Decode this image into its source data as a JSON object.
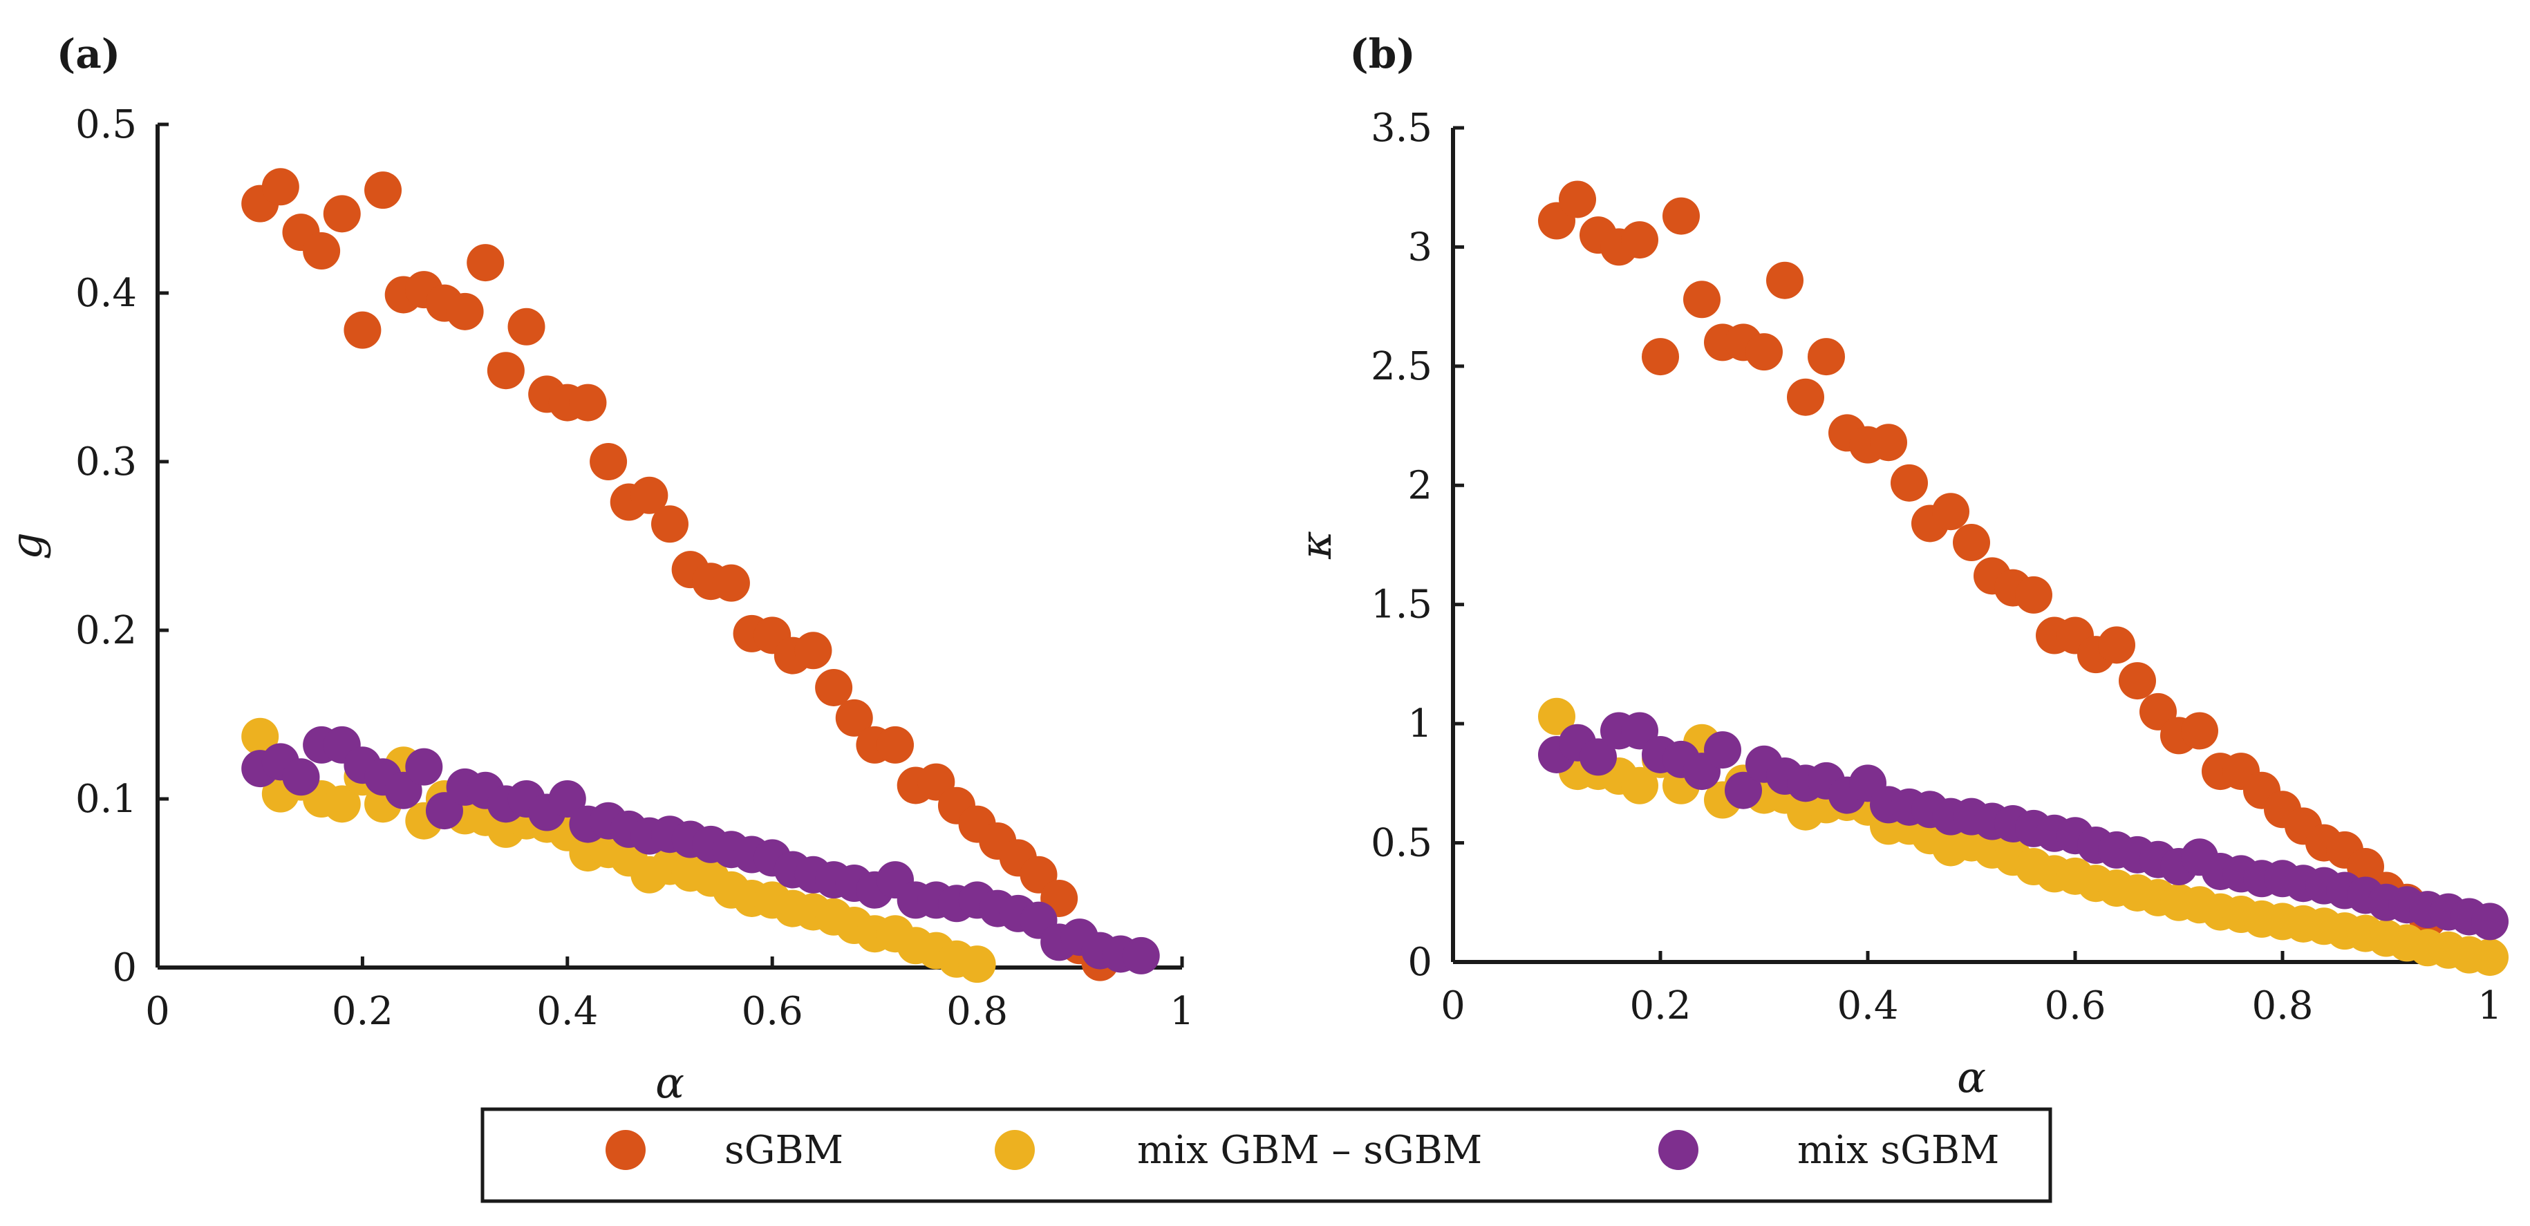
{
  "chart_data": [
    {
      "type": "scatter",
      "panel_label": "(a)",
      "xlabel": "α",
      "ylabel": "g",
      "xlim": [
        0,
        1
      ],
      "ylim": [
        0,
        0.5
      ],
      "xticks": [
        "0",
        "0.2",
        "0.4",
        "0.6",
        "0.8",
        "1"
      ],
      "yticks": [
        "0",
        "0.1",
        "0.2",
        "0.3",
        "0.4",
        "0.5"
      ],
      "grid": false,
      "series": [
        {
          "name": "sGBM",
          "color": "#d95319",
          "points": [
            [
              0.1,
              0.453
            ],
            [
              0.12,
              0.463
            ],
            [
              0.14,
              0.436
            ],
            [
              0.16,
              0.425
            ],
            [
              0.18,
              0.447
            ],
            [
              0.2,
              0.378
            ],
            [
              0.22,
              0.461
            ],
            [
              0.24,
              0.399
            ],
            [
              0.26,
              0.402
            ],
            [
              0.28,
              0.394
            ],
            [
              0.3,
              0.389
            ],
            [
              0.32,
              0.418
            ],
            [
              0.34,
              0.354
            ],
            [
              0.36,
              0.38
            ],
            [
              0.38,
              0.34
            ],
            [
              0.4,
              0.335
            ],
            [
              0.42,
              0.335
            ],
            [
              0.44,
              0.3
            ],
            [
              0.46,
              0.276
            ],
            [
              0.48,
              0.28
            ],
            [
              0.5,
              0.263
            ],
            [
              0.52,
              0.236
            ],
            [
              0.54,
              0.229
            ],
            [
              0.56,
              0.228
            ],
            [
              0.58,
              0.198
            ],
            [
              0.6,
              0.197
            ],
            [
              0.62,
              0.185
            ],
            [
              0.64,
              0.188
            ],
            [
              0.66,
              0.166
            ],
            [
              0.68,
              0.148
            ],
            [
              0.7,
              0.132
            ],
            [
              0.72,
              0.132
            ],
            [
              0.74,
              0.108
            ],
            [
              0.76,
              0.11
            ],
            [
              0.78,
              0.096
            ],
            [
              0.8,
              0.085
            ],
            [
              0.82,
              0.075
            ],
            [
              0.84,
              0.065
            ],
            [
              0.86,
              0.055
            ],
            [
              0.88,
              0.041
            ],
            [
              0.9,
              0.013
            ],
            [
              0.92,
              0.003
            ]
          ]
        },
        {
          "name": "mix GBM – sGBM",
          "color": "#edb120",
          "points": [
            [
              0.1,
              0.137
            ],
            [
              0.12,
              0.103
            ],
            [
              0.14,
              0.11
            ],
            [
              0.16,
              0.1
            ],
            [
              0.18,
              0.097
            ],
            [
              0.2,
              0.113
            ],
            [
              0.22,
              0.097
            ],
            [
              0.24,
              0.12
            ],
            [
              0.26,
              0.087
            ],
            [
              0.28,
              0.1
            ],
            [
              0.3,
              0.09
            ],
            [
              0.32,
              0.089
            ],
            [
              0.34,
              0.082
            ],
            [
              0.36,
              0.087
            ],
            [
              0.38,
              0.085
            ],
            [
              0.4,
              0.08
            ],
            [
              0.42,
              0.068
            ],
            [
              0.44,
              0.07
            ],
            [
              0.46,
              0.065
            ],
            [
              0.48,
              0.055
            ],
            [
              0.5,
              0.06
            ],
            [
              0.52,
              0.056
            ],
            [
              0.54,
              0.053
            ],
            [
              0.56,
              0.046
            ],
            [
              0.58,
              0.041
            ],
            [
              0.6,
              0.04
            ],
            [
              0.62,
              0.035
            ],
            [
              0.64,
              0.033
            ],
            [
              0.66,
              0.03
            ],
            [
              0.68,
              0.025
            ],
            [
              0.7,
              0.02
            ],
            [
              0.72,
              0.02
            ],
            [
              0.74,
              0.013
            ],
            [
              0.76,
              0.01
            ],
            [
              0.78,
              0.005
            ],
            [
              0.8,
              0.002
            ]
          ]
        },
        {
          "name": "mix sGBM",
          "color": "#7e2f8e",
          "points": [
            [
              0.1,
              0.118
            ],
            [
              0.12,
              0.122
            ],
            [
              0.14,
              0.113
            ],
            [
              0.16,
              0.132
            ],
            [
              0.18,
              0.132
            ],
            [
              0.2,
              0.12
            ],
            [
              0.22,
              0.113
            ],
            [
              0.24,
              0.105
            ],
            [
              0.26,
              0.119
            ],
            [
              0.28,
              0.093
            ],
            [
              0.3,
              0.107
            ],
            [
              0.32,
              0.105
            ],
            [
              0.34,
              0.097
            ],
            [
              0.36,
              0.1
            ],
            [
              0.38,
              0.092
            ],
            [
              0.4,
              0.1
            ],
            [
              0.42,
              0.085
            ],
            [
              0.44,
              0.087
            ],
            [
              0.46,
              0.082
            ],
            [
              0.48,
              0.078
            ],
            [
              0.5,
              0.079
            ],
            [
              0.52,
              0.076
            ],
            [
              0.54,
              0.073
            ],
            [
              0.56,
              0.07
            ],
            [
              0.58,
              0.067
            ],
            [
              0.6,
              0.065
            ],
            [
              0.62,
              0.058
            ],
            [
              0.64,
              0.055
            ],
            [
              0.66,
              0.052
            ],
            [
              0.68,
              0.05
            ],
            [
              0.7,
              0.046
            ],
            [
              0.72,
              0.052
            ],
            [
              0.74,
              0.04
            ],
            [
              0.76,
              0.04
            ],
            [
              0.78,
              0.038
            ],
            [
              0.8,
              0.04
            ],
            [
              0.82,
              0.035
            ],
            [
              0.84,
              0.032
            ],
            [
              0.86,
              0.028
            ],
            [
              0.88,
              0.015
            ],
            [
              0.9,
              0.018
            ],
            [
              0.92,
              0.01
            ],
            [
              0.94,
              0.008
            ],
            [
              0.96,
              0.007
            ]
          ]
        }
      ]
    },
    {
      "type": "scatter",
      "panel_label": "(b)",
      "xlabel": "α",
      "ylabel": "κ",
      "xlim": [
        0,
        1
      ],
      "ylim": [
        0,
        3.5
      ],
      "xticks": [
        "0",
        "0.2",
        "0.4",
        "0.6",
        "0.8",
        "1"
      ],
      "yticks": [
        "0",
        "0.5",
        "1",
        "1.5",
        "2",
        "2.5",
        "3",
        "3.5"
      ],
      "grid": false,
      "series": [
        {
          "name": "sGBM",
          "color": "#d95319",
          "points": [
            [
              0.1,
              3.11
            ],
            [
              0.12,
              3.2
            ],
            [
              0.14,
              3.05
            ],
            [
              0.16,
              3.0
            ],
            [
              0.18,
              3.03
            ],
            [
              0.2,
              2.54
            ],
            [
              0.22,
              3.13
            ],
            [
              0.24,
              2.78
            ],
            [
              0.26,
              2.6
            ],
            [
              0.28,
              2.6
            ],
            [
              0.3,
              2.56
            ],
            [
              0.32,
              2.86
            ],
            [
              0.34,
              2.37
            ],
            [
              0.36,
              2.54
            ],
            [
              0.38,
              2.22
            ],
            [
              0.4,
              2.17
            ],
            [
              0.42,
              2.18
            ],
            [
              0.44,
              2.01
            ],
            [
              0.46,
              1.84
            ],
            [
              0.48,
              1.89
            ],
            [
              0.5,
              1.76
            ],
            [
              0.52,
              1.62
            ],
            [
              0.54,
              1.57
            ],
            [
              0.56,
              1.54
            ],
            [
              0.58,
              1.37
            ],
            [
              0.6,
              1.37
            ],
            [
              0.62,
              1.29
            ],
            [
              0.64,
              1.33
            ],
            [
              0.66,
              1.18
            ],
            [
              0.68,
              1.05
            ],
            [
              0.7,
              0.95
            ],
            [
              0.72,
              0.97
            ],
            [
              0.74,
              0.8
            ],
            [
              0.76,
              0.8
            ],
            [
              0.78,
              0.72
            ],
            [
              0.8,
              0.64
            ],
            [
              0.82,
              0.57
            ],
            [
              0.84,
              0.5
            ],
            [
              0.86,
              0.47
            ],
            [
              0.88,
              0.4
            ],
            [
              0.9,
              0.3
            ],
            [
              0.92,
              0.25
            ],
            [
              0.94,
              0.18
            ]
          ]
        },
        {
          "name": "mix GBM – sGBM",
          "color": "#edb120",
          "points": [
            [
              0.1,
              1.03
            ],
            [
              0.12,
              0.8
            ],
            [
              0.14,
              0.8
            ],
            [
              0.16,
              0.78
            ],
            [
              0.18,
              0.74
            ],
            [
              0.2,
              0.85
            ],
            [
              0.22,
              0.74
            ],
            [
              0.24,
              0.92
            ],
            [
              0.26,
              0.68
            ],
            [
              0.28,
              0.75
            ],
            [
              0.3,
              0.7
            ],
            [
              0.32,
              0.7
            ],
            [
              0.34,
              0.63
            ],
            [
              0.36,
              0.66
            ],
            [
              0.38,
              0.67
            ],
            [
              0.4,
              0.65
            ],
            [
              0.42,
              0.57
            ],
            [
              0.44,
              0.57
            ],
            [
              0.46,
              0.53
            ],
            [
              0.48,
              0.48
            ],
            [
              0.5,
              0.5
            ],
            [
              0.52,
              0.47
            ],
            [
              0.54,
              0.44
            ],
            [
              0.56,
              0.4
            ],
            [
              0.58,
              0.37
            ],
            [
              0.6,
              0.36
            ],
            [
              0.62,
              0.33
            ],
            [
              0.64,
              0.31
            ],
            [
              0.66,
              0.29
            ],
            [
              0.68,
              0.27
            ],
            [
              0.7,
              0.25
            ],
            [
              0.72,
              0.24
            ],
            [
              0.74,
              0.21
            ],
            [
              0.76,
              0.2
            ],
            [
              0.78,
              0.18
            ],
            [
              0.8,
              0.17
            ],
            [
              0.82,
              0.16
            ],
            [
              0.84,
              0.15
            ],
            [
              0.86,
              0.13
            ],
            [
              0.88,
              0.12
            ],
            [
              0.9,
              0.1
            ],
            [
              0.92,
              0.08
            ],
            [
              0.94,
              0.06
            ],
            [
              0.96,
              0.05
            ],
            [
              0.98,
              0.03
            ],
            [
              1.0,
              0.02
            ]
          ]
        },
        {
          "name": "mix sGBM",
          "color": "#7e2f8e",
          "points": [
            [
              0.1,
              0.87
            ],
            [
              0.12,
              0.92
            ],
            [
              0.14,
              0.86
            ],
            [
              0.16,
              0.97
            ],
            [
              0.18,
              0.97
            ],
            [
              0.2,
              0.87
            ],
            [
              0.22,
              0.85
            ],
            [
              0.24,
              0.8
            ],
            [
              0.26,
              0.89
            ],
            [
              0.28,
              0.72
            ],
            [
              0.3,
              0.83
            ],
            [
              0.32,
              0.78
            ],
            [
              0.34,
              0.75
            ],
            [
              0.36,
              0.76
            ],
            [
              0.38,
              0.7
            ],
            [
              0.4,
              0.75
            ],
            [
              0.42,
              0.66
            ],
            [
              0.44,
              0.65
            ],
            [
              0.46,
              0.64
            ],
            [
              0.48,
              0.61
            ],
            [
              0.5,
              0.61
            ],
            [
              0.52,
              0.59
            ],
            [
              0.54,
              0.58
            ],
            [
              0.56,
              0.56
            ],
            [
              0.58,
              0.54
            ],
            [
              0.6,
              0.53
            ],
            [
              0.62,
              0.49
            ],
            [
              0.64,
              0.47
            ],
            [
              0.66,
              0.45
            ],
            [
              0.68,
              0.43
            ],
            [
              0.7,
              0.4
            ],
            [
              0.72,
              0.44
            ],
            [
              0.74,
              0.38
            ],
            [
              0.76,
              0.37
            ],
            [
              0.78,
              0.35
            ],
            [
              0.8,
              0.35
            ],
            [
              0.82,
              0.33
            ],
            [
              0.84,
              0.32
            ],
            [
              0.86,
              0.3
            ],
            [
              0.88,
              0.28
            ],
            [
              0.9,
              0.25
            ],
            [
              0.92,
              0.24
            ],
            [
              0.94,
              0.22
            ],
            [
              0.96,
              0.21
            ],
            [
              0.98,
              0.19
            ],
            [
              1.0,
              0.17
            ]
          ]
        }
      ]
    }
  ],
  "legend": {
    "position": "bottom-center",
    "entries": [
      {
        "label": "sGBM",
        "color": "#d95319"
      },
      {
        "label": "mix GBM – sGBM",
        "color": "#edb120"
      },
      {
        "label": "mix sGBM",
        "color": "#7e2f8e"
      }
    ]
  }
}
